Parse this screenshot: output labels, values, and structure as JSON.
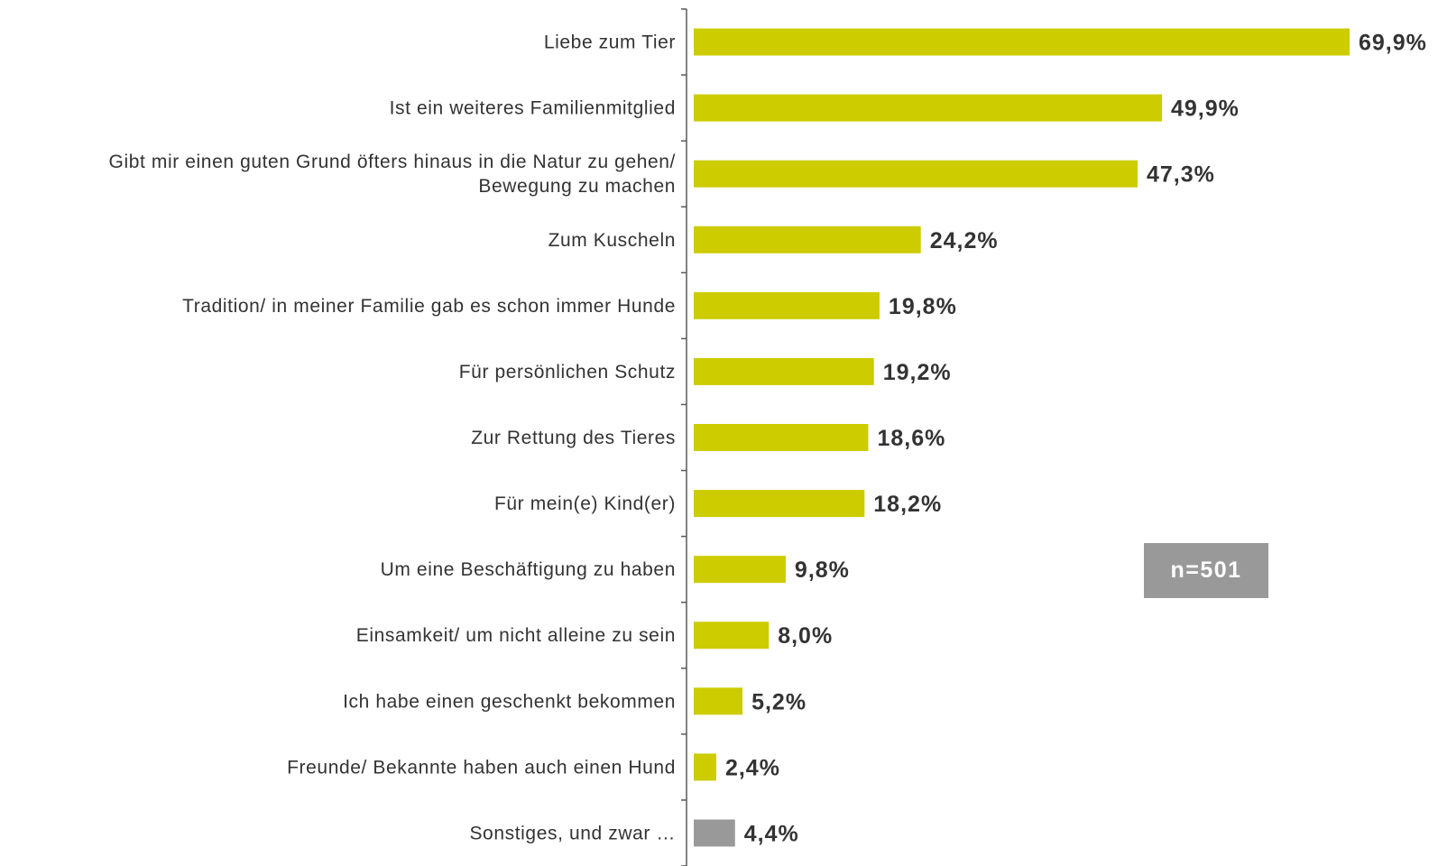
{
  "chart_data": {
    "type": "bar",
    "orientation": "horizontal",
    "categories": [
      [
        "Liebe zum Tier"
      ],
      [
        "Ist ein weiteres Familienmitglied"
      ],
      [
        "Gibt mir einen guten Grund öfters hinaus in die Natur zu gehen/",
        "Bewegung zu machen"
      ],
      [
        "Zum Kuscheln"
      ],
      [
        "Tradition/ in meiner Familie gab es schon immer Hunde"
      ],
      [
        "Für persönlichen Schutz"
      ],
      [
        "Zur Rettung des Tieres"
      ],
      [
        "Für mein(e) Kind(er)"
      ],
      [
        "Um eine Beschäftigung zu haben"
      ],
      [
        "Einsamkeit/ um nicht alleine zu sein"
      ],
      [
        "Ich habe einen geschenkt bekommen"
      ],
      [
        "Freunde/ Bekannte haben auch einen Hund"
      ],
      [
        "Sonstiges, und zwar …"
      ]
    ],
    "values": [
      69.9,
      49.9,
      47.3,
      24.2,
      19.8,
      19.2,
      18.6,
      18.2,
      9.8,
      8.0,
      5.2,
      2.4,
      4.4
    ],
    "value_labels": [
      "69,9%",
      "49,9%",
      "47,3%",
      "24,2%",
      "19,8%",
      "19,2%",
      "18,6%",
      "18,2%",
      "9,8%",
      "8,0%",
      "5,2%",
      "2,4%",
      "4,4%"
    ],
    "bar_colors": [
      "#cccc00",
      "#cccc00",
      "#cccc00",
      "#cccc00",
      "#cccc00",
      "#cccc00",
      "#cccc00",
      "#cccc00",
      "#cccc00",
      "#cccc00",
      "#cccc00",
      "#cccc00",
      "#999999"
    ],
    "xlim": [
      0,
      69.9
    ],
    "title": "",
    "xlabel": "",
    "ylabel": "",
    "grid": false,
    "legend": "none"
  },
  "sample_note": "n=501",
  "colors": {
    "accent_bar": "#cccc00",
    "other_bar": "#999999",
    "axis": "#595959",
    "text": "#333333",
    "badge_bg": "#999999",
    "badge_text": "#ffffff"
  }
}
